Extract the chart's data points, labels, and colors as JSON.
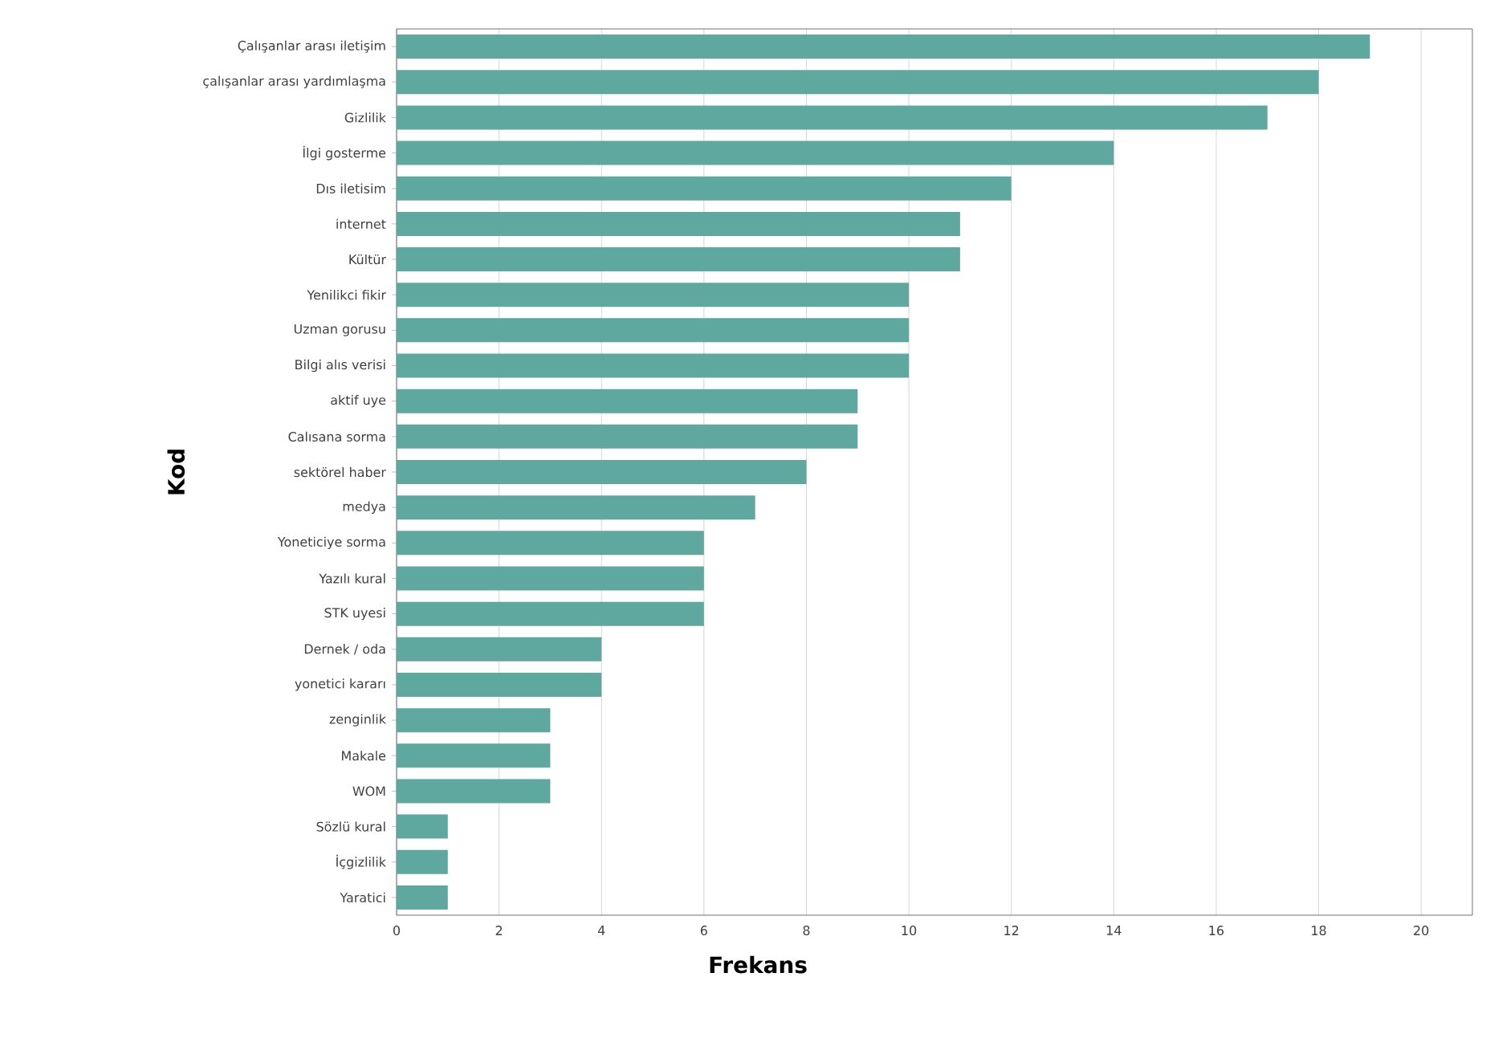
{
  "chart_data": {
    "type": "bar",
    "orientation": "horizontal",
    "xlabel": "Frekans",
    "ylabel": "Kod",
    "categories": [
      "Çalışanlar arası iletişim",
      "çalışanlar arası yardımlaşma",
      "Gizlilik",
      "İlgi gosterme",
      "Dıs iletisim",
      "internet",
      "Kültür",
      "Yenilikci fikir",
      "Uzman gorusu",
      "Bilgi alıs verisi",
      "aktif uye",
      "Calısana sorma",
      "sektörel haber",
      "medya",
      "Yoneticiye sorma",
      "Yazılı kural",
      "STK uyesi",
      "Dernek / oda",
      "yonetici kararı",
      "zenginlik",
      "Makale",
      "WOM",
      "Sözlü kural",
      "İçgizlilik",
      "Yaratici"
    ],
    "values": [
      19,
      18,
      17,
      14,
      12,
      11,
      11,
      10,
      10,
      10,
      9,
      9,
      8,
      7,
      6,
      6,
      6,
      4,
      4,
      3,
      3,
      3,
      1,
      1,
      1
    ],
    "color": "#5fa8a0",
    "xlim": [
      0,
      21
    ],
    "xticks": [
      0,
      2,
      4,
      6,
      8,
      10,
      12,
      14,
      16,
      18,
      20
    ],
    "grid": "x"
  }
}
